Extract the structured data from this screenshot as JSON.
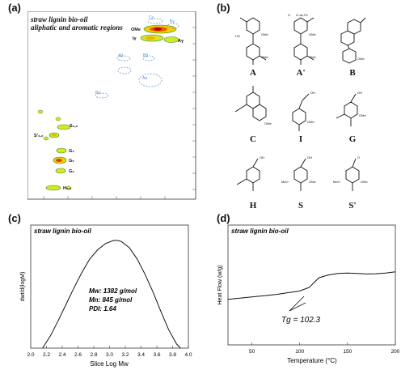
{
  "panels": {
    "a": {
      "label": "(a)",
      "title_line1": "straw lignin bio-oil",
      "title_line2": "aliphatic and aromatic regions",
      "peak_labels": [
        "OMe",
        "Iγ",
        "Aγ",
        "Cγ",
        "Bγ",
        "Aβ",
        "Bβ",
        "Aα",
        "Bα",
        "S₂,₆",
        "S'₂,₆",
        "G₂",
        "G₅",
        "G₆",
        "H₂,₆"
      ]
    },
    "b": {
      "label": "(b)",
      "structures": [
        "A",
        "A'",
        "B",
        "C",
        "I",
        "G",
        "H",
        "S",
        "S'"
      ]
    },
    "c": {
      "label": "(c)",
      "title": "straw lignin bio-oil",
      "annotation": {
        "mw": "Mw: 1382 g/mol",
        "mn": "Mn: 845 g/mol",
        "pdi": "PDI: 1.64"
      }
    },
    "d": {
      "label": "(d)",
      "title": "straw lignin bio-oil",
      "annotation": "Tg = 102.3"
    }
  },
  "chart_data": [
    {
      "panel": "c",
      "type": "line",
      "title": "straw lignin bio-oil",
      "xlabel": "Slice Log Mw",
      "ylabel": "dwt/d(logM)",
      "xlim": [
        2.0,
        4.0
      ],
      "xticks": [
        "2.0",
        "2.2",
        "2.4",
        "2.6",
        "2.8",
        "3.0",
        "3.2",
        "3.4",
        "3.6",
        "3.8",
        "4.0"
      ],
      "yticks": [],
      "series": [
        {
          "x": [
            2.15,
            2.25,
            2.35,
            2.45,
            2.55,
            2.65,
            2.75,
            2.85,
            2.95,
            3.05,
            3.1,
            3.15,
            3.25,
            3.35,
            3.45,
            3.55,
            3.65,
            3.75,
            3.85,
            3.9
          ],
          "y": [
            0.0,
            0.12,
            0.27,
            0.43,
            0.59,
            0.74,
            0.87,
            0.96,
            1.02,
            1.05,
            1.05,
            1.04,
            0.98,
            0.87,
            0.72,
            0.55,
            0.36,
            0.18,
            0.04,
            0.0
          ]
        }
      ],
      "ylim": [
        0,
        1.2
      ]
    },
    {
      "panel": "d",
      "type": "line",
      "title": "straw lignin bio-oil",
      "xlabel": "Temperature (°C)",
      "ylabel": "Heat Flow (w/g)",
      "xlim": [
        25,
        200
      ],
      "xticks": [
        "50",
        "100",
        "150",
        "200"
      ],
      "yticks": [],
      "series": [
        {
          "x": [
            25,
            50,
            75,
            100,
            110,
            115,
            120,
            130,
            140,
            150,
            160,
            170,
            180,
            190,
            200
          ],
          "y": [
            0.19,
            0.2,
            0.21,
            0.225,
            0.24,
            0.26,
            0.28,
            0.292,
            0.298,
            0.3,
            0.298,
            0.296,
            0.297,
            0.3,
            0.305
          ]
        }
      ],
      "ylim": [
        0.0,
        0.5
      ]
    }
  ]
}
